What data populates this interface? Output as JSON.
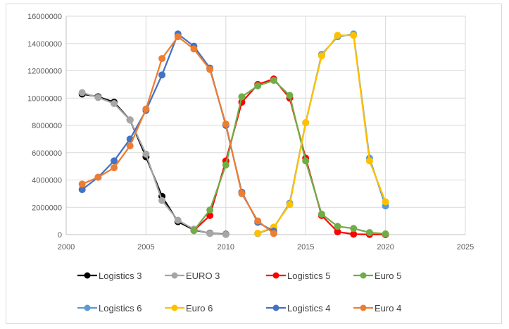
{
  "chart_data": {
    "type": "scatter",
    "title": "",
    "xlabel": "",
    "ylabel": "",
    "xlim": [
      2000,
      2025
    ],
    "ylim": [
      0,
      16000000
    ],
    "x_ticks": [
      "2000",
      "2005",
      "2010",
      "2015",
      "2020",
      "2025"
    ],
    "y_ticks": [
      "0",
      "2000000",
      "4000000",
      "6000000",
      "8000000",
      "10000000",
      "12000000",
      "14000000",
      "16000000"
    ],
    "grid": true,
    "legend_position": "bottom",
    "series": [
      {
        "name": "Logistics 3",
        "color": "#000000",
        "x": [
          2001,
          2002,
          2003,
          2004,
          2005,
          2006,
          2007,
          2008,
          2009,
          2010
        ],
        "y": [
          10300000,
          10100000,
          9700000,
          8400000,
          5700000,
          2800000,
          950000,
          350000,
          100000,
          30000
        ]
      },
      {
        "name": "EURO 3",
        "color": "#a6a6a6",
        "x": [
          2001,
          2002,
          2003,
          2004,
          2005,
          2006,
          2007,
          2008,
          2009,
          2010
        ],
        "y": [
          10400000,
          10050000,
          9600000,
          8400000,
          5900000,
          2500000,
          1050000,
          400000,
          80000,
          10000
        ]
      },
      {
        "name": "Logistics 5",
        "color": "#ff0000",
        "x": [
          2008,
          2009,
          2010,
          2011,
          2012,
          2013,
          2014,
          2015,
          2016,
          2017,
          2018,
          2019,
          2020
        ],
        "y": [
          300000,
          1400000,
          5400000,
          9700000,
          11000000,
          11400000,
          10000000,
          5600000,
          1400000,
          200000,
          30000,
          10000,
          0
        ]
      },
      {
        "name": "Euro 5",
        "color": "#70ad47",
        "x": [
          2008,
          2009,
          2010,
          2011,
          2012,
          2013,
          2014,
          2015,
          2016,
          2017,
          2018,
          2019,
          2020
        ],
        "y": [
          300000,
          1800000,
          5100000,
          10100000,
          10900000,
          11300000,
          10200000,
          5400000,
          1500000,
          600000,
          450000,
          150000,
          50000
        ]
      },
      {
        "name": "Logistics 6",
        "color": "#5b9bd5",
        "x": [
          2012,
          2013,
          2014,
          2015,
          2016,
          2017,
          2018,
          2019,
          2020
        ],
        "y": [
          80000,
          500000,
          2300000,
          8200000,
          13200000,
          14500000,
          14700000,
          5600000,
          2100000
        ]
      },
      {
        "name": "Euro 6",
        "color": "#ffc000",
        "x": [
          2012,
          2013,
          2014,
          2015,
          2016,
          2017,
          2018,
          2019,
          2020
        ],
        "y": [
          100000,
          550000,
          2200000,
          8200000,
          13100000,
          14600000,
          14600000,
          5400000,
          2400000
        ]
      },
      {
        "name": "Logistics 4",
        "color": "#4472c4",
        "x": [
          2001,
          2002,
          2003,
          2004,
          2005,
          2006,
          2007,
          2008,
          2009,
          2010,
          2011,
          2012,
          2013
        ],
        "y": [
          3300000,
          4200000,
          5400000,
          7000000,
          9100000,
          11700000,
          14700000,
          13800000,
          12200000,
          8000000,
          3100000,
          900000,
          250000
        ]
      },
      {
        "name": "Euro 4",
        "color": "#ed7d31",
        "x": [
          2001,
          2002,
          2003,
          2004,
          2005,
          2006,
          2007,
          2008,
          2009,
          2010,
          2011,
          2012,
          2013
        ],
        "y": [
          3700000,
          4200000,
          4900000,
          6500000,
          9200000,
          12900000,
          14500000,
          13600000,
          12100000,
          8100000,
          3000000,
          1000000,
          80000
        ]
      }
    ]
  }
}
